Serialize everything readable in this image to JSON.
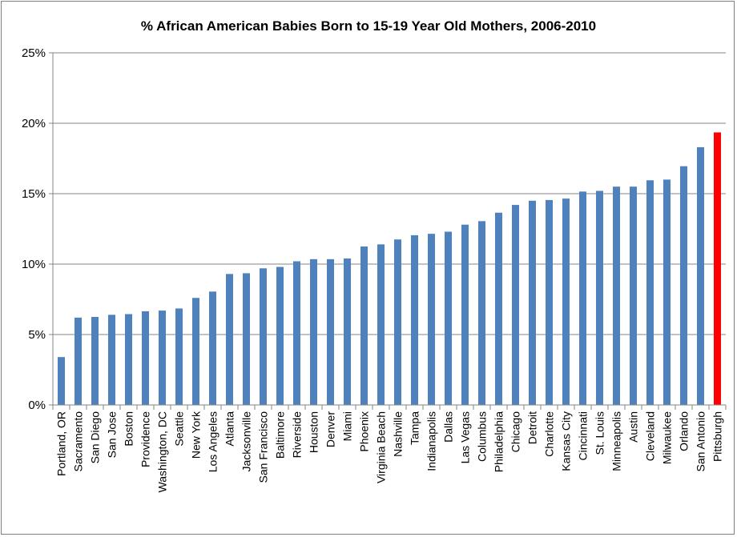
{
  "chart_data": {
    "type": "bar",
    "title": "% African American Babies Born to 15-19 Year Old Mothers, 2006-2010",
    "xlabel": "",
    "ylabel": "",
    "ylim": [
      0,
      25
    ],
    "yticks": [
      "0%",
      "5%",
      "10%",
      "15%",
      "20%",
      "25%"
    ],
    "grid": true,
    "legend": "none",
    "colors": {
      "default": "#4f81bd",
      "highlight": "#ff0000",
      "grid": "#868686"
    },
    "highlight_category": "Pittsburgh",
    "categories": [
      "Portland, OR",
      "Sacramento",
      "San Diego",
      "San Jose",
      "Boston",
      "Providence",
      "Washington, DC",
      "Seattle",
      "New York",
      "Los Angeles",
      "Atlanta",
      "Jacksonville",
      "San Francisco",
      "Baltimore",
      "Riverside",
      "Houston",
      "Denver",
      "Miami",
      "Phoenix",
      "Virginia Beach",
      "Nashville",
      "Tampa",
      "Indianapolis",
      "Dallas",
      "Las Vegas",
      "Columbus",
      "Philadelphia",
      "Chicago",
      "Detroit",
      "Charlotte",
      "Kansas City",
      "Cincinnati",
      "St. Louis",
      "Minneapolis",
      "Austin",
      "Cleveland",
      "Milwaukee",
      "Orlando",
      "San Antonio",
      "Pittsburgh"
    ],
    "values": [
      3.4,
      6.2,
      6.25,
      6.4,
      6.45,
      6.65,
      6.7,
      6.85,
      7.6,
      8.05,
      9.3,
      9.35,
      9.7,
      9.8,
      10.2,
      10.35,
      10.35,
      10.4,
      11.25,
      11.4,
      11.75,
      12.05,
      12.15,
      12.3,
      12.8,
      13.05,
      13.65,
      14.2,
      14.5,
      14.55,
      14.65,
      15.15,
      15.2,
      15.5,
      15.5,
      15.95,
      16.0,
      16.95,
      18.3,
      19.35
    ]
  }
}
